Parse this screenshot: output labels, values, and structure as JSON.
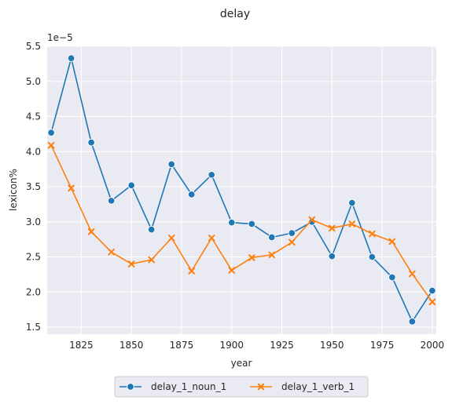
{
  "chart_data": {
    "type": "line",
    "title": "delay",
    "xlabel": "year",
    "ylabel": "lexicon%",
    "y_offset_label": "1e−5",
    "xlim": [
      1808,
      2002
    ],
    "ylim": [
      1.4,
      5.5
    ],
    "x_ticks": [
      1825,
      1850,
      1875,
      1900,
      1925,
      1950,
      1975,
      2000
    ],
    "y_ticks": [
      1.5,
      2.0,
      2.5,
      3.0,
      3.5,
      4.0,
      4.5,
      5.0,
      5.5
    ],
    "y_tick_labels": [
      "1.5",
      "2.0",
      "2.5",
      "3.0",
      "3.5",
      "4.0",
      "4.5",
      "5.0",
      "5.5"
    ],
    "grid": true,
    "legend_position": "bottom-center",
    "x": [
      1810,
      1820,
      1830,
      1840,
      1850,
      1860,
      1870,
      1880,
      1890,
      1900,
      1910,
      1920,
      1930,
      1940,
      1950,
      1960,
      1970,
      1980,
      1990,
      2000
    ],
    "series": [
      {
        "name": "delay_1_noun_1",
        "color": "#1f77b4",
        "marker": "circle",
        "values": [
          4.27,
          5.33,
          4.13,
          3.3,
          3.52,
          2.89,
          3.82,
          3.39,
          3.67,
          2.99,
          2.97,
          2.78,
          2.84,
          3.0,
          2.51,
          3.27,
          2.5,
          2.21,
          1.58,
          2.02
        ]
      },
      {
        "name": "delay_1_verb_1",
        "color": "#ff7f0e",
        "marker": "x",
        "values": [
          4.09,
          3.48,
          2.86,
          2.57,
          2.4,
          2.46,
          2.77,
          2.3,
          2.77,
          2.31,
          2.49,
          2.53,
          2.71,
          3.03,
          2.91,
          2.97,
          2.83,
          2.72,
          2.26,
          1.86
        ]
      }
    ]
  }
}
